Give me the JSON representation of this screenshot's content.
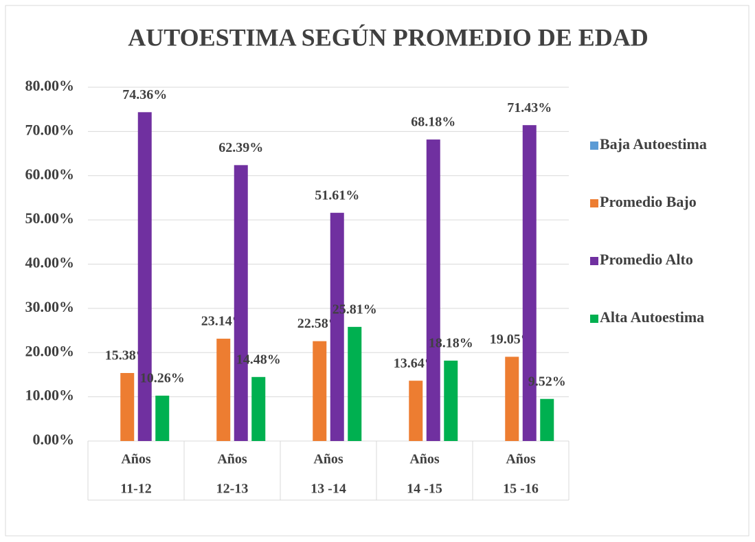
{
  "chart_data": {
    "type": "bar",
    "title": "AUTOESTIMA SEGÚN PROMEDIO  DE  EDAD",
    "categories": [
      [
        "Años",
        "11-12"
      ],
      [
        "Años",
        "12-13"
      ],
      [
        "Años",
        "13 -14"
      ],
      [
        "Años",
        "14 -15"
      ],
      [
        "Años",
        "15 -16"
      ]
    ],
    "series": [
      {
        "name": "Baja Autoestima",
        "color": "#5b9bd5",
        "values": [
          0,
          0,
          0,
          0,
          0
        ]
      },
      {
        "name": "Promedio Bajo",
        "color": "#ed7d31",
        "values": [
          15.38,
          23.14,
          22.58,
          13.64,
          19.05
        ],
        "value_labels": [
          "15.38%",
          "23.14%",
          "22.58%",
          "13.64%",
          "19.05%"
        ]
      },
      {
        "name": "Promedio Alto",
        "color": "#7030a0",
        "values": [
          74.36,
          62.39,
          51.61,
          68.18,
          71.43
        ],
        "value_labels": [
          "74.36%",
          "62.39%",
          "51.61%",
          "68.18%",
          "71.43%"
        ]
      },
      {
        "name": "Alta Autoestima",
        "color": "#00b050",
        "values": [
          10.26,
          14.48,
          25.81,
          18.18,
          9.52
        ],
        "value_labels": [
          "10.26%",
          "14.48%",
          "25.81%",
          "18.18%",
          "9.52%"
        ]
      }
    ],
    "ylim": [
      0,
      80
    ],
    "yticks": [
      {
        "value": 0,
        "label": "0.00%"
      },
      {
        "value": 10,
        "label": "10.00%"
      },
      {
        "value": 20,
        "label": "20.00%"
      },
      {
        "value": 30,
        "label": "30.00%"
      },
      {
        "value": 40,
        "label": "40.00%"
      },
      {
        "value": 50,
        "label": "50.00%"
      },
      {
        "value": 60,
        "label": "60.00%"
      },
      {
        "value": 70,
        "label": "70.00%"
      },
      {
        "value": 80,
        "label": "80.00%"
      }
    ],
    "grid": true,
    "legend": "right"
  }
}
